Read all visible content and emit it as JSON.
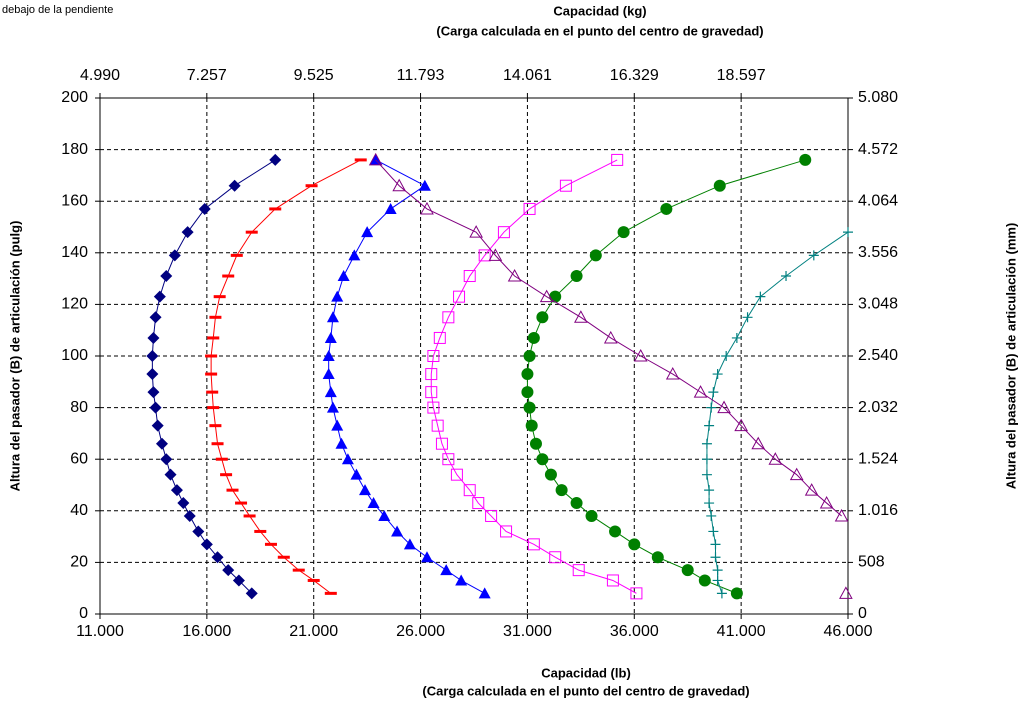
{
  "chart_data": {
    "type": "line",
    "annotation": "debajo de la pendiente",
    "xlabel": [
      "Capacidad (lb)",
      "(Carga calculada en el punto del centro de gravedad)"
    ],
    "x2label": [
      "Capacidad (kg)",
      "(Carga calculada en el punto del centro de gravedad)"
    ],
    "ylabel": "Altura del pasador (B) de articulación (pulg)",
    "y2label": "Altura del pasador (B) de articulación (mm)",
    "grid": true,
    "xlim": [
      11000,
      46000
    ],
    "xticks": [
      {
        "value": 11000,
        "label": "11.000"
      },
      {
        "value": 16000,
        "label": "16.000"
      },
      {
        "value": 21000,
        "label": "21.000"
      },
      {
        "value": 26000,
        "label": "26.000"
      },
      {
        "value": 31000,
        "label": "31.000"
      },
      {
        "value": 36000,
        "label": "36.000"
      },
      {
        "value": 41000,
        "label": "41.000"
      },
      {
        "value": 46000,
        "label": "46.000"
      }
    ],
    "x2lim": [
      4990,
      20865
    ],
    "x2ticks": [
      {
        "value": 4990,
        "label": "4.990"
      },
      {
        "value": 7257,
        "label": "7.257"
      },
      {
        "value": 9525,
        "label": "9.525"
      },
      {
        "value": 11793,
        "label": "11.793"
      },
      {
        "value": 14061,
        "label": "14.061"
      },
      {
        "value": 16329,
        "label": "16.329"
      },
      {
        "value": 18597,
        "label": "18.597"
      }
    ],
    "ylim": [
      0,
      200
    ],
    "yticks": [
      0,
      20,
      40,
      60,
      80,
      100,
      120,
      140,
      160,
      180,
      200
    ],
    "y2lim": [
      0,
      5080
    ],
    "y2ticks": [
      0,
      508,
      {
        "value": 1016,
        "label": "1.016"
      },
      {
        "value": 1524,
        "label": "1.524"
      },
      {
        "value": 2032,
        "label": "2.032"
      },
      {
        "value": 2540,
        "label": "2.540"
      },
      {
        "value": 3048,
        "label": "3.048"
      },
      {
        "value": 3556,
        "label": "3.556"
      },
      {
        "value": 4064,
        "label": "4.064"
      },
      {
        "value": 4572,
        "label": "4.572"
      },
      {
        "value": 5080,
        "label": "5.080"
      }
    ],
    "y": [
      8,
      13,
      17,
      22,
      27,
      32,
      38,
      43,
      48,
      54,
      60,
      66,
      73,
      80,
      86,
      93,
      100,
      107,
      115,
      123,
      131,
      139,
      148,
      157,
      166,
      176
    ],
    "series": [
      {
        "color": "#000080",
        "marker": "diamond",
        "values": [
          18100,
          17500,
          17000,
          16500,
          16000,
          15600,
          15200,
          14900,
          14600,
          14300,
          14100,
          13900,
          13700,
          13600,
          13500,
          13450,
          13450,
          13500,
          13600,
          13800,
          14100,
          14500,
          15100,
          15900,
          17300,
          19200
        ]
      },
      {
        "color": "#ff0000",
        "marker": "dash",
        "values": [
          21800,
          21000,
          20300,
          19600,
          19000,
          18500,
          18000,
          17600,
          17200,
          16900,
          16700,
          16500,
          16400,
          16300,
          16250,
          16200,
          16200,
          16300,
          16400,
          16600,
          17000,
          17400,
          18100,
          19200,
          20900,
          23200
        ]
      },
      {
        "color": "#0000ff",
        "marker": "triangle",
        "values": [
          29000,
          27900,
          27200,
          26300,
          25500,
          24900,
          24300,
          23800,
          23400,
          23000,
          22600,
          22300,
          22100,
          21900,
          21800,
          21700,
          21700,
          21800,
          21900,
          22100,
          22400,
          22900,
          23500,
          24600,
          26200,
          23900
        ]
      },
      {
        "color": "#ff00ff",
        "marker": "square-open",
        "values": [
          36100,
          35000,
          33400,
          32300,
          31300,
          30000,
          29300,
          28700,
          28300,
          27700,
          27300,
          27000,
          26800,
          26600,
          26500,
          26500,
          26600,
          26900,
          27300,
          27800,
          28300,
          29000,
          29900,
          31100,
          32800,
          35200
        ]
      },
      {
        "color": "#008000",
        "marker": "circle",
        "values": [
          40800,
          39300,
          38500,
          37100,
          36000,
          35100,
          34000,
          33300,
          32600,
          32100,
          31700,
          31400,
          31200,
          31100,
          31000,
          31000,
          31100,
          31300,
          31700,
          32300,
          33300,
          34200,
          35500,
          37500,
          40000,
          44000
        ]
      },
      {
        "color": "#008080",
        "marker": "plus",
        "values": [
          40100,
          39900,
          39900,
          39800,
          39800,
          39700,
          39600,
          39500,
          39500,
          39400,
          39400,
          39400,
          39500,
          39600,
          39700,
          39900,
          40300,
          40800,
          41300,
          41900,
          43100,
          44400,
          46000,
          null,
          null,
          null
        ]
      },
      {
        "color": "#800080",
        "marker": "triangle-open",
        "values": [
          45900,
          null,
          null,
          null,
          null,
          null,
          45700,
          45000,
          44300,
          43600,
          42600,
          41800,
          41000,
          40200,
          39100,
          37800,
          36300,
          34900,
          33500,
          31900,
          30400,
          29500,
          28600,
          26300,
          25000,
          23900
        ]
      }
    ]
  }
}
